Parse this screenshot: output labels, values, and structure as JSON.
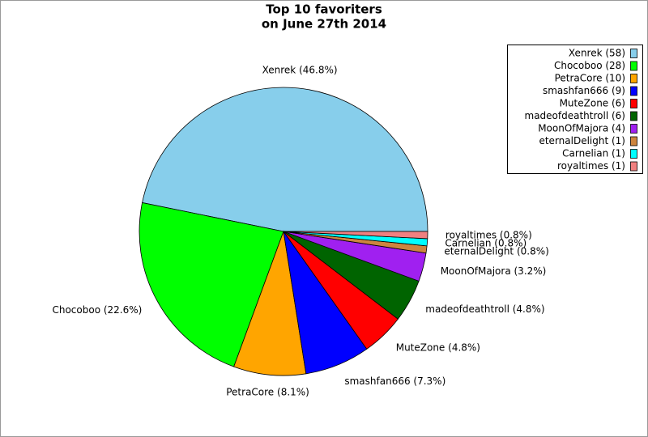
{
  "chart_data": {
    "type": "pie",
    "title": "Top 10 favoriters",
    "subtitle": "on June 27th 2014",
    "categories": [
      "Xenrek (58)",
      "Chocoboo (28)",
      "PetraCore (10)",
      "smashfan666 (9)",
      "MuteZone (6)",
      "madeofdeathtroll (6)",
      "MoonOfMajora (4)",
      "eternalDelight (1)",
      "Carnelian (1)",
      "royaltimes (1)"
    ],
    "values": [
      46.8,
      22.6,
      8.1,
      7.3,
      4.8,
      4.8,
      3.2,
      0.8,
      0.8,
      0.8
    ],
    "value_labels": [
      "Xenrek (46.8%)",
      "Chocoboo (22.6%)",
      "PetraCore (8.1%)",
      "smashfan666 (7.3%)",
      "MuteZone (4.8%)",
      "madeofdeathtroll (4.8%)",
      "MoonOfMajora (3.2%)",
      "eternalDelight (0.8%)",
      "Carnelian (0.8%)",
      "royaltimes (0.8%)"
    ],
    "colors": [
      "#87ceeb",
      "#00ff00",
      "#ffa500",
      "#0000ff",
      "#ff0000",
      "#006400",
      "#a020f0",
      "#cd853f",
      "#00ffff",
      "#f08080"
    ],
    "legend": "upper right"
  }
}
